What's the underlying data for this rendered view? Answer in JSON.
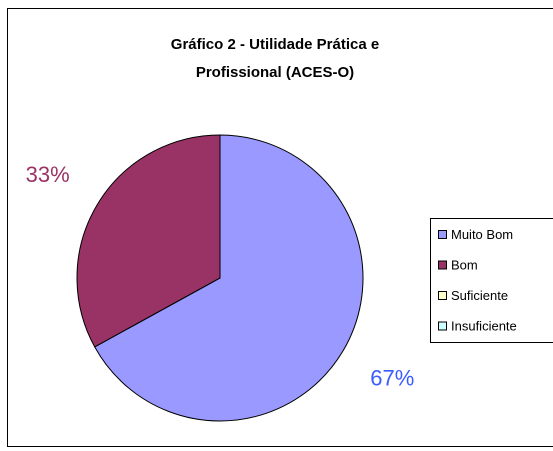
{
  "chart_data": {
    "type": "pie",
    "title": [
      "Gráfico 2 - Utilidade Prática e",
      "Profissional (ACES-O)"
    ],
    "categories": [
      "Muito Bom",
      "Bom",
      "Suficiente",
      "Insuficiente"
    ],
    "values": [
      67,
      33,
      0,
      0
    ],
    "value_labels": [
      "67%",
      "33%",
      null,
      null
    ],
    "colors": [
      "#9999ff",
      "#993366",
      "#ffffcc",
      "#ccffff"
    ],
    "label_colors": [
      "#3a5cff",
      "#993366",
      null,
      null
    ],
    "legend": "right"
  }
}
